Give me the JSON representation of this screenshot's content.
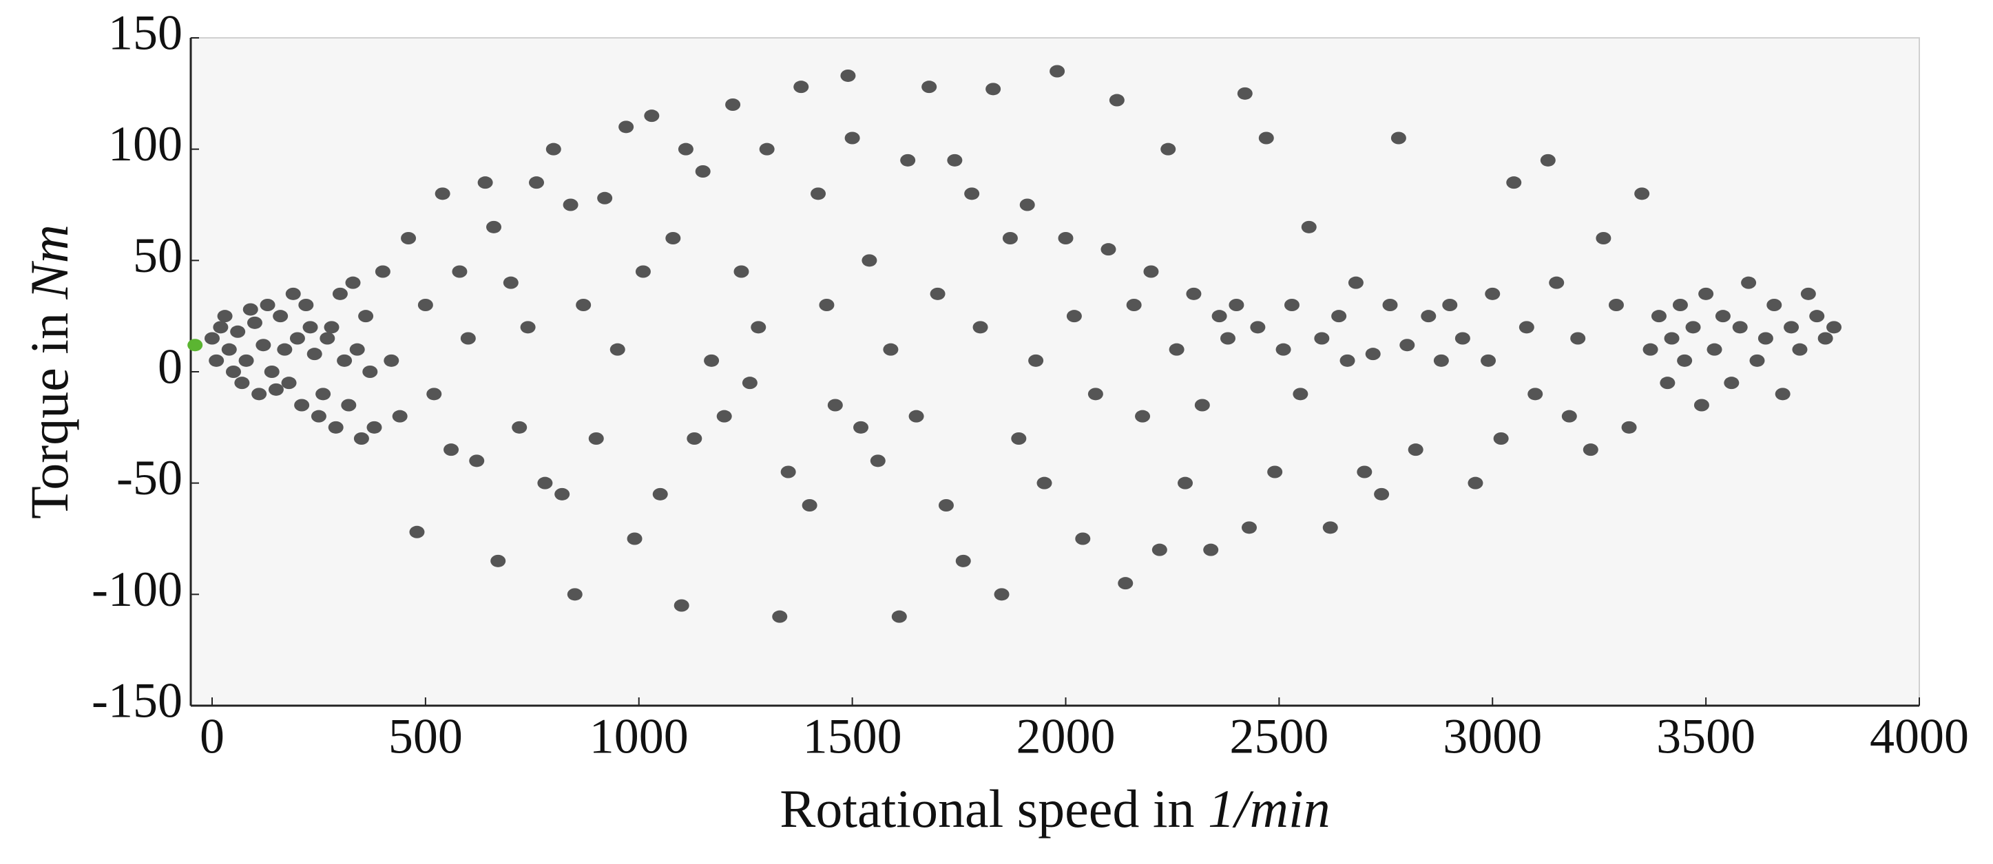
{
  "chart_data": {
    "type": "scatter",
    "xlabel": {
      "text": "Rotational speed in",
      "unit": "1/min"
    },
    "ylabel": {
      "text": "Torque in",
      "unit": "Nm"
    },
    "xlim": [
      -50,
      4000
    ],
    "ylim": [
      -150,
      150
    ],
    "xticks": [
      0,
      500,
      1000,
      1500,
      2000,
      2500,
      3000,
      3500,
      4000
    ],
    "yticks": [
      -150,
      -100,
      -50,
      0,
      50,
      100,
      150
    ],
    "grid": false,
    "series": [
      {
        "color": "#555555",
        "x": [
          0,
          10,
          20,
          30,
          40,
          50,
          60,
          70,
          80,
          90,
          100,
          110,
          120,
          130,
          140,
          150,
          160,
          170,
          180,
          190,
          200,
          210,
          220,
          230,
          240,
          250,
          260,
          270,
          280,
          290,
          300,
          310,
          320,
          330,
          340,
          350,
          360,
          370,
          380,
          400,
          420,
          440,
          460,
          480,
          500,
          520,
          540,
          560,
          580,
          600,
          620,
          640,
          660,
          670,
          700,
          720,
          740,
          760,
          780,
          800,
          820,
          840,
          850,
          870,
          900,
          920,
          950,
          970,
          990,
          1010,
          1030,
          1050,
          1080,
          1100,
          1110,
          1130,
          1150,
          1170,
          1200,
          1220,
          1240,
          1260,
          1280,
          1300,
          1330,
          1350,
          1380,
          1400,
          1420,
          1440,
          1460,
          1490,
          1500,
          1520,
          1540,
          1560,
          1590,
          1610,
          1630,
          1650,
          1680,
          1700,
          1720,
          1740,
          1760,
          1780,
          1800,
          1830,
          1850,
          1870,
          1890,
          1910,
          1930,
          1950,
          1980,
          2000,
          2020,
          2040,
          2070,
          2100,
          2120,
          2140,
          2160,
          2180,
          2200,
          2220,
          2240,
          2260,
          2280,
          2300,
          2320,
          2340,
          2360,
          2380,
          2400,
          2420,
          2430,
          2450,
          2470,
          2490,
          2510,
          2530,
          2550,
          2570,
          2600,
          2620,
          2640,
          2660,
          2680,
          2700,
          2720,
          2740,
          2760,
          2780,
          2800,
          2820,
          2850,
          2880,
          2900,
          2930,
          2960,
          2990,
          3000,
          3020,
          3050,
          3080,
          3100,
          3130,
          3150,
          3180,
          3200,
          3230,
          3260,
          3290,
          3320,
          3350,
          3370,
          3390,
          3410,
          3420,
          3440,
          3450,
          3470,
          3490,
          3500,
          3520,
          3540,
          3560,
          3580,
          3600,
          3620,
          3640,
          3660,
          3680,
          3700,
          3720,
          3740,
          3760,
          3780,
          3800
        ],
        "y": [
          15,
          5,
          20,
          25,
          10,
          0,
          18,
          -5,
          5,
          28,
          22,
          -10,
          12,
          30,
          0,
          -8,
          25,
          10,
          -5,
          35,
          15,
          -15,
          30,
          20,
          8,
          -20,
          -10,
          15,
          20,
          -25,
          35,
          5,
          -15,
          40,
          10,
          -30,
          25,
          0,
          -25,
          45,
          5,
          -20,
          60,
          -72,
          30,
          -10,
          80,
          -35,
          45,
          15,
          -40,
          85,
          65,
          -85,
          40,
          -25,
          20,
          85,
          -50,
          100,
          -55,
          75,
          -100,
          30,
          -30,
          78,
          10,
          110,
          -75,
          45,
          115,
          -55,
          60,
          -105,
          100,
          -30,
          90,
          5,
          -20,
          120,
          45,
          -5,
          20,
          100,
          -110,
          -45,
          128,
          -60,
          80,
          30,
          -15,
          133,
          105,
          -25,
          50,
          -40,
          10,
          -110,
          95,
          -20,
          128,
          35,
          -60,
          95,
          -85,
          80,
          20,
          127,
          -100,
          60,
          -30,
          75,
          5,
          -50,
          135,
          60,
          25,
          -75,
          -10,
          55,
          122,
          -95,
          30,
          -20,
          45,
          -80,
          100,
          10,
          -50,
          35,
          -15,
          -80,
          25,
          15,
          30,
          125,
          -70,
          20,
          105,
          -45,
          10,
          30,
          -10,
          65,
          15,
          -70,
          25,
          5,
          40,
          -45,
          8,
          -55,
          30,
          105,
          12,
          -35,
          25,
          5,
          30,
          15,
          -50,
          5,
          35,
          -30,
          85,
          20,
          -10,
          95,
          40,
          -20,
          15,
          -35,
          60,
          30,
          -25,
          80,
          10,
          25,
          -5,
          15,
          30,
          5,
          20,
          -15,
          35,
          10,
          25,
          -5,
          20,
          40,
          5,
          15,
          30,
          -10,
          20,
          10,
          35,
          25,
          15,
          20
        ]
      },
      {
        "color": "#5bb531",
        "x": [
          -40
        ],
        "y": [
          12
        ]
      }
    ]
  }
}
